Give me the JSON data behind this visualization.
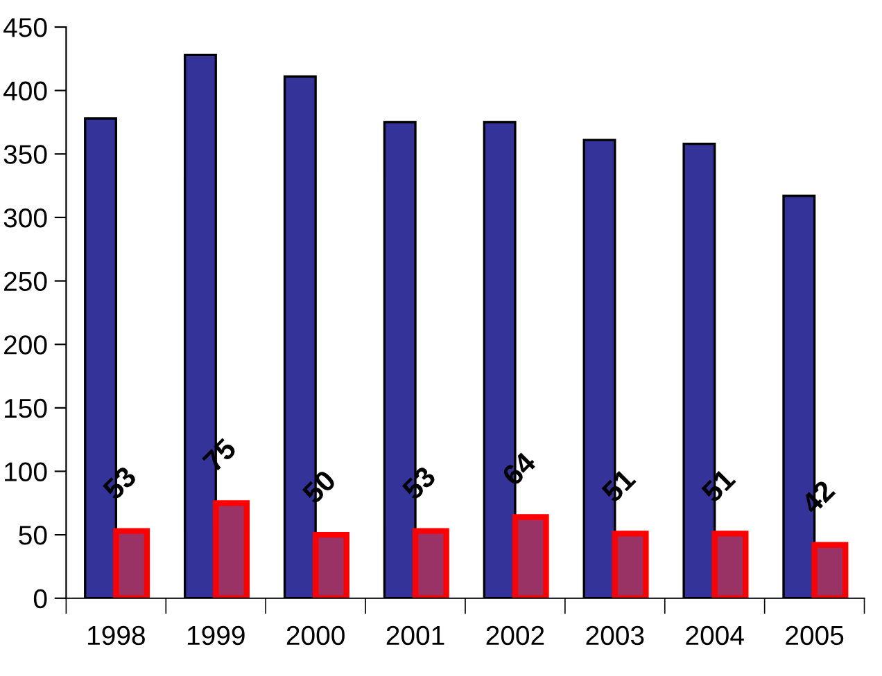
{
  "chart_data": {
    "type": "bar",
    "categories": [
      "1998",
      "1999",
      "2000",
      "2001",
      "2002",
      "2003",
      "2004",
      "2005"
    ],
    "series": [
      {
        "color": "#333399",
        "values": [
          378,
          428,
          411,
          375,
          375,
          361,
          358,
          317
        ]
      },
      {
        "color": "#993366",
        "values": [
          53,
          75,
          50,
          53,
          64,
          51,
          51,
          42
        ],
        "value_labels": [
          "53",
          "75",
          "50",
          "53",
          "64",
          "51",
          "51",
          "42"
        ]
      }
    ],
    "ylim": [
      0,
      450
    ],
    "yticks": [
      0,
      50,
      100,
      150,
      200,
      250,
      300,
      350,
      400,
      450
    ],
    "grid": false,
    "legend": false
  }
}
